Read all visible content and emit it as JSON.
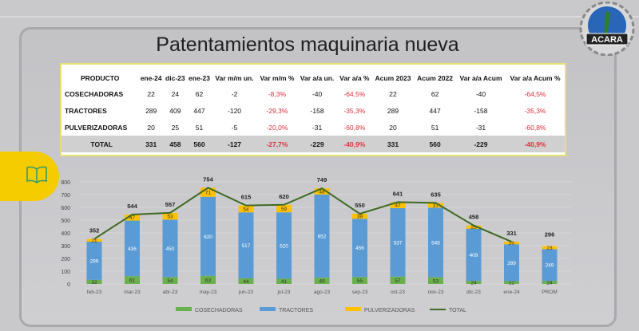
{
  "title": "Patentamientos maquinaria nueva",
  "logo_text": "ACARA",
  "table": {
    "headers": [
      "PRODUCTO",
      "ene-24",
      "dic-23",
      "ene-23",
      "Var m/m un.",
      "Var m/m %",
      "Var a/a un.",
      "Var a/a %",
      "Acum 2023",
      "Acum 2022",
      "Var a/a Acum",
      "Var a/a Acum %"
    ],
    "rows": [
      [
        "COSECHADORAS",
        "22",
        "24",
        "62",
        "-2",
        "-8,3%",
        "-40",
        "-64,5%",
        "22",
        "62",
        "-40",
        "-64,5%"
      ],
      [
        "TRACTORES",
        "289",
        "409",
        "447",
        "-120",
        "-29,3%",
        "-158",
        "-35,3%",
        "289",
        "447",
        "-158",
        "-35,3%"
      ],
      [
        "PULVERIZADORAS",
        "20",
        "25",
        "51",
        "-5",
        "-20,0%",
        "-31",
        "-60,8%",
        "20",
        "51",
        "-31",
        "-60,8%"
      ],
      [
        "TOTAL",
        "331",
        "458",
        "560",
        "-127",
        "-27,7%",
        "-229",
        "-40,9%",
        "331",
        "560",
        "-229",
        "-40,9%"
      ]
    ]
  },
  "chart_data": {
    "type": "bar",
    "stacked": true,
    "categories": [
      "feb-23",
      "mar-23",
      "abr-23",
      "may-23",
      "jun-23",
      "jul-23",
      "ago-23",
      "sep-23",
      "oct-23",
      "nov-23",
      "dic-23",
      "ene-24",
      "PROM"
    ],
    "series": [
      {
        "name": "COSECHADORAS",
        "color": "#6ab04c",
        "values": [
          32,
          61,
          54,
          63,
          44,
          41,
          49,
          55,
          57,
          53,
          24,
          22,
          24
        ]
      },
      {
        "name": "TRACTORES",
        "color": "#5b9bd5",
        "values": [
          299,
          436,
          450,
          620,
          517,
          520,
          652,
          456,
          537,
          545,
          409,
          289,
          249
        ]
      },
      {
        "name": "PULVERIZADORAS",
        "color": "#ffc000",
        "values": [
          21,
          47,
          53,
          71,
          54,
          59,
          48,
          39,
          47,
          37,
          25,
          20,
          23
        ]
      },
      {
        "name": "TOTAL",
        "type": "line",
        "color": "#3d6b22",
        "values": [
          352,
          544,
          557,
          754,
          615,
          620,
          749,
          550,
          641,
          635,
          458,
          331,
          null
        ]
      }
    ],
    "total_labels": [
      352,
      544,
      557,
      754,
      615,
      620,
      749,
      550,
      641,
      635,
      458,
      331,
      296
    ],
    "yticks": [
      0,
      100,
      200,
      300,
      400,
      500,
      600,
      700,
      800
    ],
    "ylim": [
      0,
      800
    ],
    "legend": "bottom"
  }
}
